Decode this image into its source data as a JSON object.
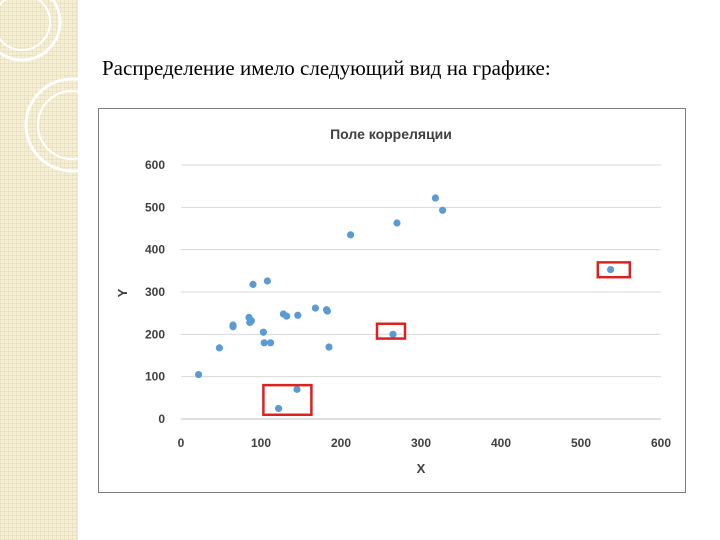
{
  "slide": {
    "heading": "Распределение имело следующий вид на графике:"
  },
  "chart_data": {
    "type": "scatter",
    "title": "Поле корреляции",
    "xlabel": "X",
    "ylabel": "Y",
    "xlim": [
      0,
      600
    ],
    "ylim": [
      0,
      600
    ],
    "x_ticks": [
      0,
      100,
      200,
      300,
      400,
      500,
      600
    ],
    "y_ticks": [
      0,
      100,
      200,
      300,
      400,
      500,
      600
    ],
    "grid": "horizontal",
    "legend": "none",
    "point_color": "#5b9bd5",
    "highlight_color": "#e0201c",
    "points": [
      {
        "x": 22,
        "y": 105
      },
      {
        "x": 48,
        "y": 168
      },
      {
        "x": 65,
        "y": 218
      },
      {
        "x": 65,
        "y": 222
      },
      {
        "x": 85,
        "y": 240
      },
      {
        "x": 86,
        "y": 228
      },
      {
        "x": 88,
        "y": 232
      },
      {
        "x": 90,
        "y": 318
      },
      {
        "x": 103,
        "y": 205
      },
      {
        "x": 104,
        "y": 180
      },
      {
        "x": 108,
        "y": 326
      },
      {
        "x": 112,
        "y": 180
      },
      {
        "x": 122,
        "y": 25
      },
      {
        "x": 128,
        "y": 248
      },
      {
        "x": 132,
        "y": 243
      },
      {
        "x": 145,
        "y": 70
      },
      {
        "x": 146,
        "y": 245
      },
      {
        "x": 168,
        "y": 262
      },
      {
        "x": 182,
        "y": 258
      },
      {
        "x": 183,
        "y": 255
      },
      {
        "x": 185,
        "y": 170
      },
      {
        "x": 212,
        "y": 435
      },
      {
        "x": 265,
        "y": 200
      },
      {
        "x": 270,
        "y": 463
      },
      {
        "x": 318,
        "y": 522
      },
      {
        "x": 327,
        "y": 493
      },
      {
        "x": 537,
        "y": 353
      }
    ],
    "highlights": [
      {
        "x_range": [
          103,
          163
        ],
        "y_range": [
          10,
          80
        ]
      },
      {
        "x_range": [
          245,
          280
        ],
        "y_range": [
          190,
          225
        ]
      },
      {
        "x_range": [
          521,
          561
        ],
        "y_range": [
          335,
          370
        ]
      }
    ]
  }
}
